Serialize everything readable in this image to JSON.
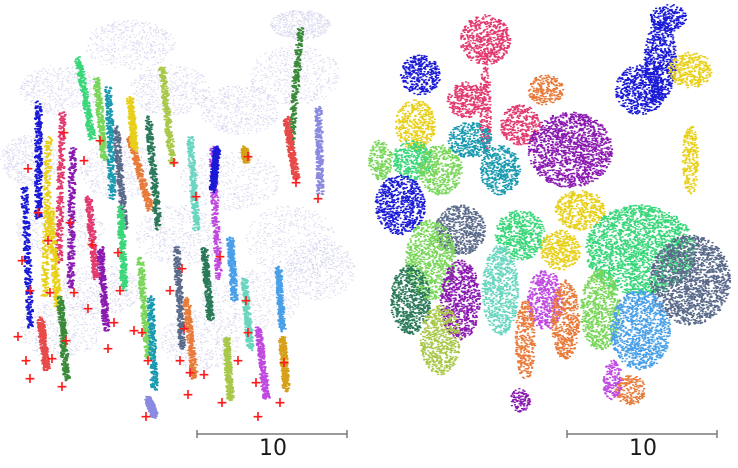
{
  "figure": {
    "left_panel": {
      "scale_bar_label": "10"
    },
    "right_panel": {
      "scale_bar_label": "10"
    }
  },
  "colors": {
    "background_cloud": "#b9b9e3",
    "marker": "#ff1a1a",
    "scale_bar": "#7a7a7a",
    "palette": [
      "#1a1ad6",
      "#e8d01a",
      "#e23a6e",
      "#8a1ab0",
      "#3ad67a",
      "#7ad65a",
      "#1a9ab0",
      "#5a6a8a",
      "#e87a3a",
      "#2a7a5a",
      "#a8c84a",
      "#6ad6c0",
      "#c04ae0",
      "#4aa0e8",
      "#d6a01a",
      "#3a8a3a",
      "#e84a4a",
      "#8a8ae0"
    ]
  },
  "legend_icons": [
    "plus-marker-icon"
  ]
}
